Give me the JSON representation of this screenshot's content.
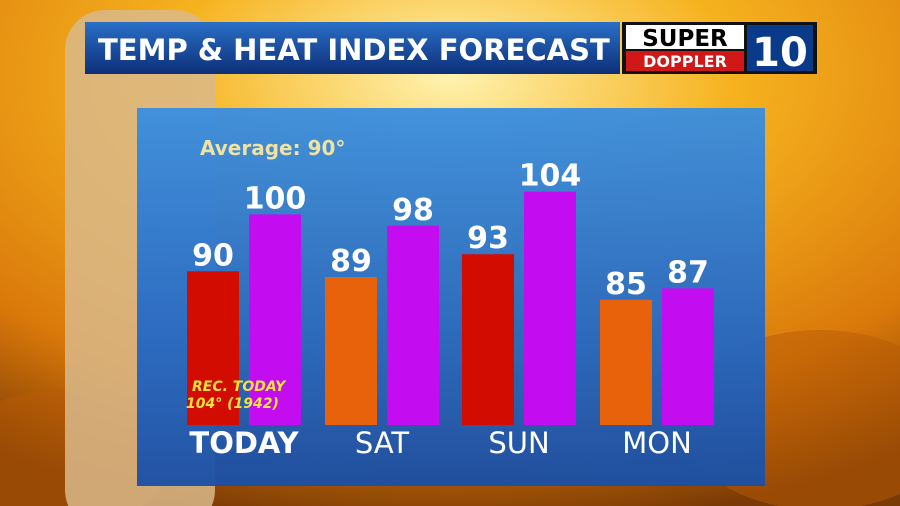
{
  "chart_data": {
    "type": "bar",
    "title": "TEMP & HEAT INDEX FORECAST",
    "categories": [
      "TODAY",
      "SAT",
      "SUN",
      "MON"
    ],
    "series": [
      {
        "colors": [
          "#d30c02",
          "#e8620c",
          "#d30c02",
          "#e8620c"
        ],
        "values": [
          90,
          89,
          93,
          85
        ]
      },
      {
        "color": "#c30df0",
        "values": [
          100,
          98,
          104,
          87
        ]
      }
    ],
    "ylim": [
      63,
      115
    ],
    "annotations": [
      "Average: 90°",
      "REC. TODAY",
      "104° (1942)"
    ]
  },
  "logo": {
    "line1": "SUPER",
    "line2": "DOPPLER",
    "number": "10"
  }
}
